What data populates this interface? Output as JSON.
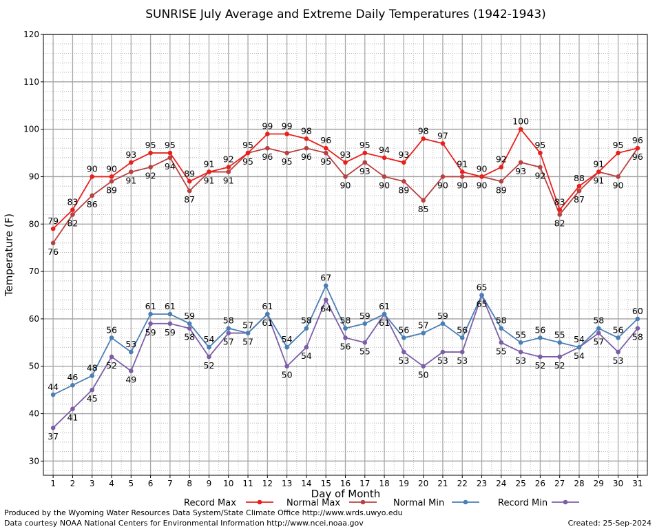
{
  "chart_data": {
    "type": "line",
    "title": "SUNRISE July Average and Extreme Daily Temperatures (1942-1943)",
    "xlabel": "Day of Month",
    "ylabel": "Temperature (F)",
    "ylim": [
      27,
      120
    ],
    "xlim": [
      0.5,
      31.5
    ],
    "yticks": [
      30,
      40,
      50,
      60,
      70,
      80,
      90,
      100,
      110,
      120
    ],
    "x": [
      1,
      2,
      3,
      4,
      5,
      6,
      7,
      8,
      9,
      10,
      11,
      12,
      13,
      14,
      15,
      16,
      17,
      18,
      19,
      20,
      21,
      22,
      23,
      24,
      25,
      26,
      27,
      28,
      29,
      30,
      31
    ],
    "grid": true,
    "legend_position": "bottom",
    "series": [
      {
        "name": "Record Max",
        "color": "#e8201c",
        "values": [
          79,
          83,
          90,
          90,
          93,
          95,
          95,
          89,
          91,
          92,
          95,
          99,
          99,
          98,
          96,
          93,
          95,
          94,
          93,
          98,
          97,
          91,
          90,
          92,
          100,
          95,
          83,
          88,
          91,
          95,
          96
        ]
      },
      {
        "name": "Normal Max",
        "color": "#b84040",
        "values": [
          76,
          82,
          86,
          89,
          91,
          92,
          94,
          87,
          91,
          91,
          95,
          96,
          95,
          96,
          95,
          90,
          93,
          90,
          89,
          85,
          90,
          90,
          90,
          89,
          93,
          92,
          82,
          87,
          91,
          90,
          96
        ]
      },
      {
        "name": "Normal Min",
        "color": "#4a7fb5",
        "values": [
          44,
          46,
          48,
          56,
          53,
          61,
          61,
          59,
          54,
          58,
          57,
          61,
          54,
          58,
          67,
          58,
          59,
          61,
          56,
          57,
          59,
          56,
          65,
          58,
          55,
          56,
          55,
          54,
          58,
          56,
          60
        ]
      },
      {
        "name": "Record Min",
        "color": "#7b5ea7",
        "values": [
          37,
          41,
          45,
          52,
          49,
          59,
          59,
          58,
          52,
          57,
          57,
          61,
          50,
          54,
          64,
          56,
          55,
          61,
          53,
          50,
          53,
          53,
          65,
          55,
          53,
          52,
          52,
          54,
          57,
          53,
          58
        ]
      }
    ]
  },
  "footer": {
    "produced_by": "Produced by the Wyoming Water Resources Data System/State Climate Office http://www.wrds.uwyo.edu",
    "courtesy": "Data courtesy NOAA National Centers for Environmental Information http://www.ncei.noaa.gov",
    "created": "Created:  25-Sep-2024"
  }
}
